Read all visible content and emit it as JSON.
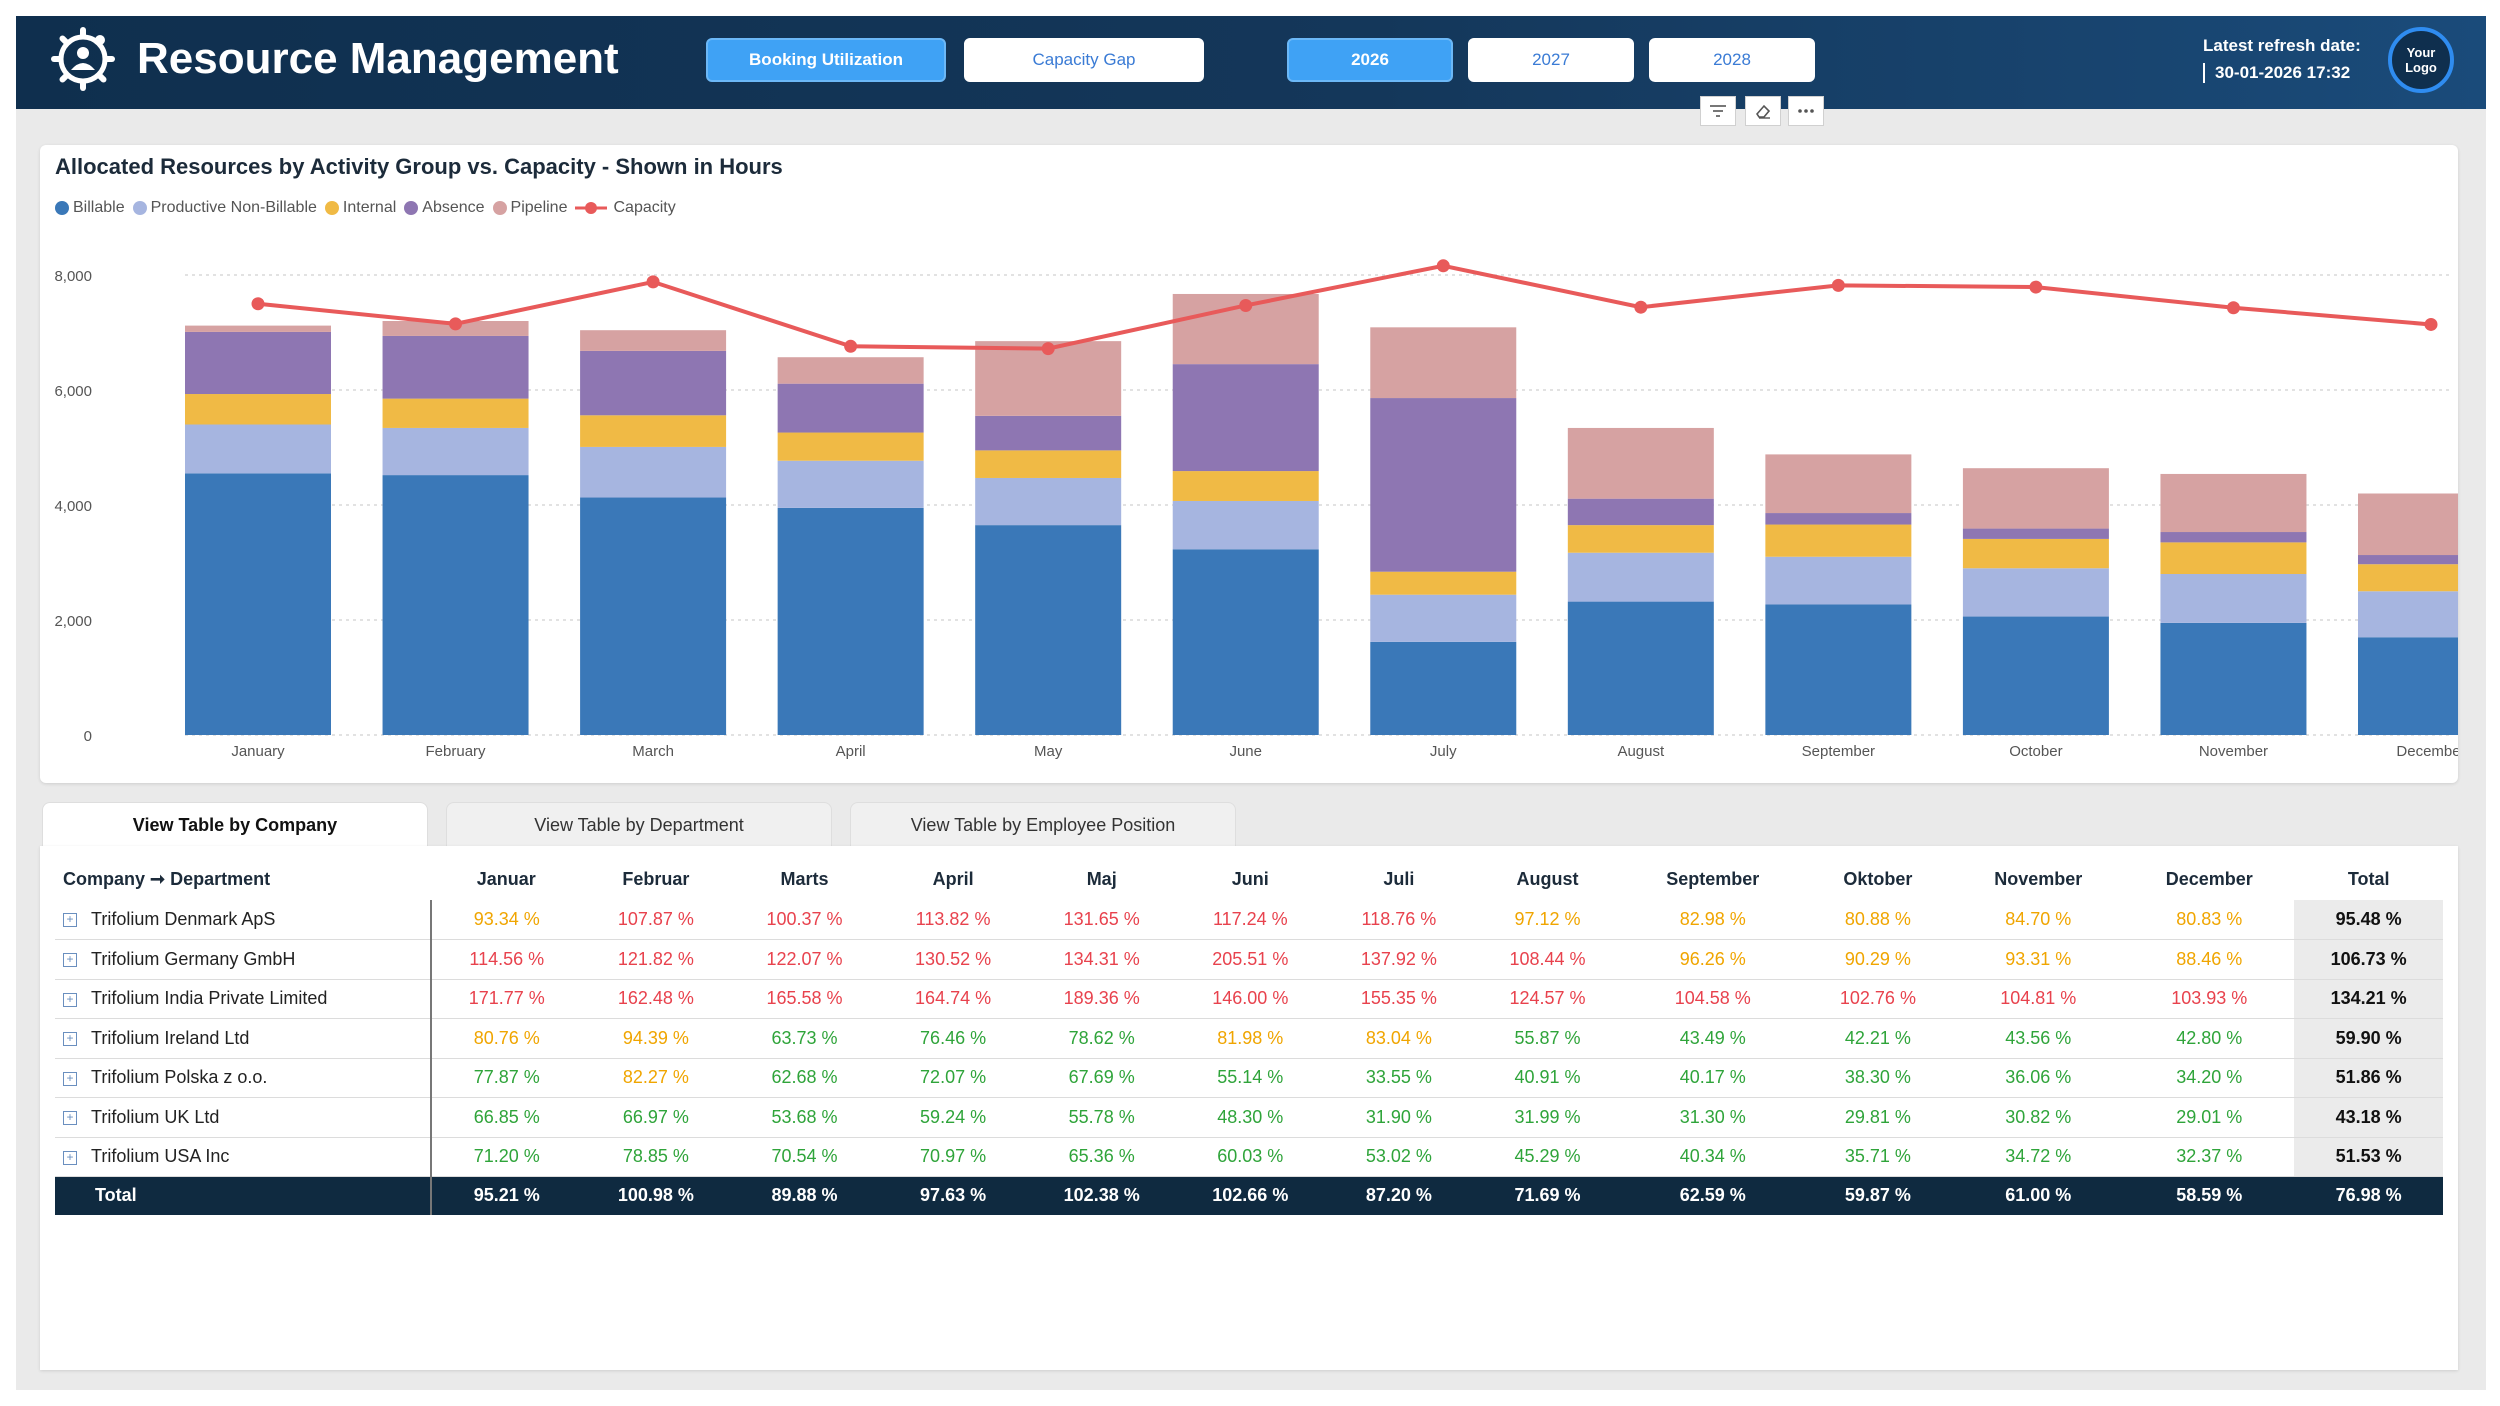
{
  "header": {
    "title": "Resource Management",
    "buttons": [
      {
        "label": "Booking Utilization",
        "active": true
      },
      {
        "label": "Capacity Gap",
        "active": false
      }
    ],
    "years": [
      {
        "label": "2026",
        "active": true
      },
      {
        "label": "2027",
        "active": false
      },
      {
        "label": "2028",
        "active": false
      }
    ],
    "refresh_label": "Latest refresh date:",
    "refresh_value": "30-01-2026 17:32",
    "logo_text": "Your Logo"
  },
  "visual_toolbar": [
    "filter-icon",
    "eraser-icon",
    "more-options-icon"
  ],
  "chart_data": {
    "type": "bar",
    "stacked": true,
    "title": "Allocated Resources by Activity Group vs. Capacity - Shown in Hours",
    "categories": [
      "January",
      "February",
      "March",
      "April",
      "May",
      "June",
      "July",
      "August",
      "September",
      "October",
      "November",
      "December"
    ],
    "ylim": [
      0,
      8000
    ],
    "yticks": [
      "0",
      "2,000",
      "4,000",
      "6,000",
      "8,000"
    ],
    "grid": true,
    "legend": "top-left",
    "series": [
      {
        "name": "Billable",
        "color": "#3a78b8",
        "values": [
          4550,
          4520,
          4130,
          3950,
          3650,
          3230,
          1620,
          2320,
          2270,
          2060,
          1950,
          1700
        ]
      },
      {
        "name": "Productive Non-Billable",
        "color": "#a6b5e0",
        "values": [
          850,
          820,
          880,
          820,
          820,
          840,
          820,
          850,
          830,
          840,
          850,
          800
        ]
      },
      {
        "name": "Internal",
        "color": "#f0ba45",
        "values": [
          530,
          510,
          550,
          490,
          480,
          520,
          400,
          480,
          560,
          510,
          550,
          470
        ]
      },
      {
        "name": "Absence",
        "color": "#8e76b2",
        "values": [
          1080,
          1090,
          1120,
          850,
          600,
          1860,
          3020,
          460,
          200,
          180,
          180,
          160
        ]
      },
      {
        "name": "Pipeline",
        "color": "#d6a2a2",
        "values": [
          110,
          260,
          360,
          460,
          1300,
          1220,
          1230,
          1230,
          1020,
          1050,
          1010,
          1070
        ]
      }
    ],
    "line": {
      "name": "Capacity",
      "color": "#e85a5a",
      "values": [
        7500,
        7150,
        7880,
        6760,
        6720,
        7470,
        8160,
        7440,
        7820,
        7790,
        7430,
        7140
      ]
    }
  },
  "tabs": [
    {
      "label": "View Table by Company",
      "active": true
    },
    {
      "label": "View Table by Department",
      "active": false
    },
    {
      "label": "View Table by Employee Position",
      "active": false
    }
  ],
  "table": {
    "columns": [
      "Company ➞ Department",
      "Januar",
      "Februar",
      "Marts",
      "April",
      "Maj",
      "Juni",
      "Juli",
      "August",
      "September",
      "Oktober",
      "November",
      "December",
      "Total"
    ],
    "rows": [
      {
        "name": "Trifolium Denmark ApS",
        "values": [
          "93.34 %",
          "107.87 %",
          "100.37 %",
          "113.82 %",
          "131.65 %",
          "117.24 %",
          "118.76 %",
          "97.12 %",
          "82.98 %",
          "80.88 %",
          "84.70 %",
          "80.83 %"
        ],
        "status": [
          "y",
          "r",
          "r",
          "r",
          "r",
          "r",
          "r",
          "y",
          "y",
          "y",
          "y",
          "y"
        ],
        "total": "95.48 %"
      },
      {
        "name": "Trifolium Germany GmbH",
        "values": [
          "114.56 %",
          "121.82 %",
          "122.07 %",
          "130.52 %",
          "134.31 %",
          "205.51 %",
          "137.92 %",
          "108.44 %",
          "96.26 %",
          "90.29 %",
          "93.31 %",
          "88.46 %"
        ],
        "status": [
          "r",
          "r",
          "r",
          "r",
          "r",
          "r",
          "r",
          "r",
          "y",
          "y",
          "y",
          "y"
        ],
        "total": "106.73 %"
      },
      {
        "name": "Trifolium India Private Limited",
        "values": [
          "171.77 %",
          "162.48 %",
          "165.58 %",
          "164.74 %",
          "189.36 %",
          "146.00 %",
          "155.35 %",
          "124.57 %",
          "104.58 %",
          "102.76 %",
          "104.81 %",
          "103.93 %"
        ],
        "status": [
          "r",
          "r",
          "r",
          "r",
          "r",
          "r",
          "r",
          "r",
          "r",
          "r",
          "r",
          "r"
        ],
        "total": "134.21 %"
      },
      {
        "name": "Trifolium Ireland Ltd",
        "values": [
          "80.76 %",
          "94.39 %",
          "63.73 %",
          "76.46 %",
          "78.62 %",
          "81.98 %",
          "83.04 %",
          "55.87 %",
          "43.49 %",
          "42.21 %",
          "43.56 %",
          "42.80 %"
        ],
        "status": [
          "y",
          "y",
          "g",
          "g",
          "g",
          "y",
          "y",
          "g",
          "g",
          "g",
          "g",
          "g"
        ],
        "total": "59.90 %"
      },
      {
        "name": "Trifolium Polska z o.o.",
        "values": [
          "77.87 %",
          "82.27 %",
          "62.68 %",
          "72.07 %",
          "67.69 %",
          "55.14 %",
          "33.55 %",
          "40.91 %",
          "40.17 %",
          "38.30 %",
          "36.06 %",
          "34.20 %"
        ],
        "status": [
          "g",
          "y",
          "g",
          "g",
          "g",
          "g",
          "g",
          "g",
          "g",
          "g",
          "g",
          "g"
        ],
        "total": "51.86 %"
      },
      {
        "name": "Trifolium UK Ltd",
        "values": [
          "66.85 %",
          "66.97 %",
          "53.68 %",
          "59.24 %",
          "55.78 %",
          "48.30 %",
          "31.90 %",
          "31.99 %",
          "31.30 %",
          "29.81 %",
          "30.82 %",
          "29.01 %"
        ],
        "status": [
          "g",
          "g",
          "g",
          "g",
          "g",
          "g",
          "g",
          "g",
          "g",
          "g",
          "g",
          "g"
        ],
        "total": "43.18 %"
      },
      {
        "name": "Trifolium USA Inc",
        "values": [
          "71.20 %",
          "78.85 %",
          "70.54 %",
          "70.97 %",
          "65.36 %",
          "60.03 %",
          "53.02 %",
          "45.29 %",
          "40.34 %",
          "35.71 %",
          "34.72 %",
          "32.37 %"
        ],
        "status": [
          "g",
          "g",
          "g",
          "g",
          "g",
          "g",
          "g",
          "g",
          "g",
          "g",
          "g",
          "g"
        ],
        "total": "51.53 %"
      }
    ],
    "total_row": {
      "name": "Total",
      "values": [
        "95.21 %",
        "100.98 %",
        "89.88 %",
        "97.63 %",
        "102.38 %",
        "102.66 %",
        "87.20 %",
        "71.69 %",
        "62.59 %",
        "59.87 %",
        "61.00 %",
        "58.59 %"
      ],
      "total": "76.98 %"
    },
    "status_colors": {
      "y": "#f0a500",
      "r": "#e8424d",
      "g": "#2fa43a"
    }
  }
}
